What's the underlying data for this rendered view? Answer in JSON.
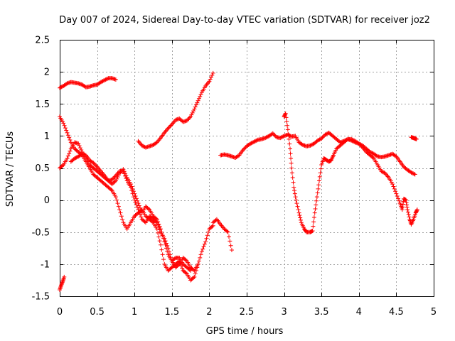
{
  "chart_data": {
    "type": "scatter",
    "title": "Day 007 of 2024, Sidereal Day-to-day VTEC variation (SDTVAR) for receiver joz2",
    "xlabel": "GPS time / hours",
    "ylabel": "SDTVAR / TECUs",
    "xlim": [
      0,
      5
    ],
    "ylim": [
      -1.5,
      2.5
    ],
    "xticks": [
      "0",
      "0.5",
      "1",
      "1.5",
      "2",
      "2.5",
      "3",
      "3.5",
      "4",
      "4.5",
      "5"
    ],
    "yticks": [
      "2.5",
      "2",
      "1.5",
      "1",
      "0.5",
      "0",
      "-0.5",
      "-1",
      "-1.5"
    ],
    "grid": true,
    "legend": "none",
    "marker": "plus",
    "color": "#ff0000",
    "series": [
      {
        "points": [
          [
            0.0,
            1.75
          ],
          [
            0.05,
            1.78
          ],
          [
            0.1,
            1.82
          ],
          [
            0.15,
            1.84
          ],
          [
            0.2,
            1.83
          ],
          [
            0.25,
            1.82
          ],
          [
            0.3,
            1.8
          ],
          [
            0.35,
            1.76
          ],
          [
            0.4,
            1.77
          ],
          [
            0.45,
            1.79
          ],
          [
            0.5,
            1.8
          ],
          [
            0.55,
            1.84
          ],
          [
            0.6,
            1.87
          ],
          [
            0.65,
            1.9
          ],
          [
            0.7,
            1.9
          ],
          [
            0.75,
            1.88
          ]
        ]
      },
      {
        "points": [
          [
            0.0,
            1.3
          ],
          [
            0.05,
            1.2
          ],
          [
            0.1,
            1.05
          ],
          [
            0.15,
            0.9
          ],
          [
            0.2,
            0.8
          ],
          [
            0.25,
            0.75
          ],
          [
            0.3,
            0.7
          ],
          [
            0.35,
            0.6
          ],
          [
            0.4,
            0.5
          ],
          [
            0.45,
            0.4
          ],
          [
            0.5,
            0.35
          ],
          [
            0.55,
            0.3
          ],
          [
            0.6,
            0.25
          ],
          [
            0.65,
            0.2
          ],
          [
            0.7,
            0.15
          ],
          [
            0.75,
            0.05
          ],
          [
            0.8,
            -0.15
          ],
          [
            0.85,
            -0.35
          ],
          [
            0.9,
            -0.45
          ],
          [
            0.95,
            -0.35
          ],
          [
            1.0,
            -0.25
          ],
          [
            1.05,
            -0.2
          ],
          [
            1.1,
            -0.15
          ],
          [
            1.15,
            -0.25
          ],
          [
            1.2,
            -0.3
          ],
          [
            1.25,
            -0.35
          ],
          [
            1.3,
            -0.45
          ],
          [
            1.35,
            -0.7
          ],
          [
            1.4,
            -1.0
          ],
          [
            1.45,
            -1.1
          ],
          [
            1.5,
            -1.05
          ],
          [
            1.55,
            -1.0
          ],
          [
            1.6,
            -0.95
          ],
          [
            1.65,
            -1.1
          ],
          [
            1.7,
            -1.15
          ],
          [
            1.75,
            -1.25
          ],
          [
            1.8,
            -1.2
          ],
          [
            1.85,
            -1.0
          ],
          [
            1.9,
            -0.8
          ],
          [
            1.95,
            -0.65
          ],
          [
            2.0,
            -0.45
          ],
          [
            2.05,
            -0.4
          ]
        ]
      },
      {
        "points": [
          [
            0.0,
            0.5
          ],
          [
            0.05,
            0.55
          ],
          [
            0.1,
            0.65
          ],
          [
            0.15,
            0.8
          ],
          [
            0.2,
            0.9
          ],
          [
            0.25,
            0.88
          ],
          [
            0.3,
            0.75
          ],
          [
            0.35,
            0.65
          ],
          [
            0.4,
            0.55
          ],
          [
            0.45,
            0.5
          ],
          [
            0.5,
            0.45
          ],
          [
            0.55,
            0.4
          ],
          [
            0.6,
            0.35
          ],
          [
            0.65,
            0.3
          ],
          [
            0.7,
            0.32
          ],
          [
            0.75,
            0.38
          ],
          [
            0.8,
            0.45
          ],
          [
            0.85,
            0.45
          ],
          [
            0.9,
            0.3
          ],
          [
            0.95,
            0.2
          ],
          [
            1.0,
            0.0
          ],
          [
            1.05,
            -0.15
          ],
          [
            1.1,
            -0.3
          ],
          [
            1.15,
            -0.35
          ],
          [
            1.2,
            -0.25
          ],
          [
            1.25,
            -0.3
          ],
          [
            1.3,
            -0.35
          ],
          [
            1.35,
            -0.5
          ],
          [
            1.4,
            -0.6
          ],
          [
            1.45,
            -0.75
          ],
          [
            1.5,
            -0.95
          ],
          [
            1.55,
            -1.05
          ],
          [
            1.6,
            -1.0
          ],
          [
            1.65,
            -0.9
          ],
          [
            1.7,
            -0.95
          ],
          [
            1.75,
            -1.05
          ],
          [
            1.8,
            -1.1
          ],
          [
            1.85,
            -1.0
          ]
        ]
      },
      {
        "points": [
          [
            0.15,
            0.6
          ],
          [
            0.2,
            0.65
          ],
          [
            0.25,
            0.68
          ],
          [
            0.3,
            0.72
          ],
          [
            0.35,
            0.7
          ],
          [
            0.4,
            0.62
          ],
          [
            0.45,
            0.58
          ],
          [
            0.5,
            0.52
          ],
          [
            0.55,
            0.45
          ],
          [
            0.6,
            0.38
          ],
          [
            0.65,
            0.3
          ],
          [
            0.7,
            0.25
          ],
          [
            0.75,
            0.3
          ],
          [
            0.8,
            0.42
          ],
          [
            0.85,
            0.48
          ],
          [
            0.9,
            0.35
          ],
          [
            0.95,
            0.25
          ],
          [
            1.0,
            0.1
          ],
          [
            1.05,
            -0.05
          ],
          [
            1.1,
            -0.2
          ],
          [
            1.15,
            -0.1
          ],
          [
            1.2,
            -0.15
          ],
          [
            1.25,
            -0.25
          ],
          [
            1.3,
            -0.3
          ],
          [
            1.35,
            -0.45
          ],
          [
            1.4,
            -0.65
          ],
          [
            1.45,
            -0.85
          ],
          [
            1.5,
            -0.95
          ],
          [
            1.55,
            -0.9
          ],
          [
            1.6,
            -0.9
          ],
          [
            1.65,
            -1.0
          ],
          [
            1.7,
            -1.05
          ],
          [
            1.75,
            -1.1
          ]
        ]
      },
      {
        "points": [
          [
            0.0,
            -1.4
          ],
          [
            0.02,
            -1.33
          ],
          [
            0.04,
            -1.27
          ],
          [
            0.06,
            -1.2
          ]
        ]
      },
      {
        "points": [
          [
            1.05,
            0.92
          ],
          [
            1.1,
            0.85
          ],
          [
            1.15,
            0.82
          ],
          [
            1.2,
            0.84
          ],
          [
            1.25,
            0.86
          ],
          [
            1.3,
            0.9
          ],
          [
            1.35,
            0.97
          ],
          [
            1.4,
            1.05
          ],
          [
            1.45,
            1.12
          ],
          [
            1.5,
            1.18
          ],
          [
            1.55,
            1.25
          ],
          [
            1.6,
            1.27
          ],
          [
            1.65,
            1.22
          ],
          [
            1.7,
            1.24
          ],
          [
            1.75,
            1.3
          ],
          [
            1.8,
            1.42
          ],
          [
            1.85,
            1.55
          ],
          [
            1.9,
            1.68
          ],
          [
            1.95,
            1.78
          ],
          [
            2.0,
            1.85
          ],
          [
            2.05,
            1.98
          ]
        ]
      },
      {
        "points": [
          [
            2.05,
            -0.35
          ],
          [
            2.1,
            -0.3
          ],
          [
            2.15,
            -0.38
          ],
          [
            2.2,
            -0.45
          ],
          [
            2.25,
            -0.5
          ],
          [
            2.3,
            -0.78
          ]
        ]
      },
      {
        "points": [
          [
            2.15,
            0.7
          ],
          [
            2.2,
            0.71
          ],
          [
            2.25,
            0.7
          ],
          [
            2.3,
            0.68
          ],
          [
            2.35,
            0.66
          ],
          [
            2.4,
            0.7
          ],
          [
            2.45,
            0.78
          ],
          [
            2.5,
            0.84
          ],
          [
            2.55,
            0.88
          ],
          [
            2.6,
            0.91
          ],
          [
            2.65,
            0.94
          ],
          [
            2.7,
            0.95
          ],
          [
            2.75,
            0.97
          ],
          [
            2.8,
            1.0
          ],
          [
            2.85,
            1.04
          ],
          [
            2.9,
            0.98
          ],
          [
            2.95,
            0.97
          ],
          [
            3.0,
            1.0
          ],
          [
            3.05,
            1.02
          ],
          [
            3.1,
            0.99
          ],
          [
            3.15,
            1.0
          ],
          [
            3.2,
            0.9
          ],
          [
            3.25,
            0.86
          ],
          [
            3.3,
            0.84
          ],
          [
            3.35,
            0.85
          ],
          [
            3.4,
            0.88
          ],
          [
            3.45,
            0.93
          ],
          [
            3.5,
            0.96
          ],
          [
            3.55,
            1.02
          ],
          [
            3.6,
            1.05
          ],
          [
            3.65,
            1.0
          ],
          [
            3.7,
            0.95
          ],
          [
            3.75,
            0.9
          ],
          [
            3.8,
            0.92
          ],
          [
            3.85,
            0.95
          ],
          [
            3.9,
            0.93
          ],
          [
            3.95,
            0.9
          ],
          [
            4.0,
            0.88
          ],
          [
            4.05,
            0.85
          ],
          [
            4.1,
            0.8
          ],
          [
            4.15,
            0.75
          ],
          [
            4.2,
            0.72
          ],
          [
            4.25,
            0.68
          ],
          [
            4.3,
            0.67
          ],
          [
            4.35,
            0.68
          ],
          [
            4.4,
            0.7
          ],
          [
            4.45,
            0.72
          ],
          [
            4.5,
            0.68
          ],
          [
            4.55,
            0.6
          ],
          [
            4.6,
            0.52
          ],
          [
            4.65,
            0.47
          ],
          [
            4.7,
            0.43
          ],
          [
            4.75,
            0.4
          ]
        ]
      },
      {
        "points": [
          [
            3.0,
            1.3
          ],
          [
            3.02,
            1.35
          ],
          [
            3.05,
            1.1
          ],
          [
            3.08,
            0.8
          ],
          [
            3.1,
            0.5
          ],
          [
            3.13,
            0.2
          ],
          [
            3.16,
            0.0
          ],
          [
            3.2,
            -0.2
          ],
          [
            3.23,
            -0.35
          ],
          [
            3.27,
            -0.45
          ],
          [
            3.3,
            -0.5
          ],
          [
            3.35,
            -0.5
          ],
          [
            3.38,
            -0.48
          ],
          [
            3.41,
            -0.2
          ],
          [
            3.44,
            0.05
          ],
          [
            3.47,
            0.3
          ],
          [
            3.5,
            0.55
          ],
          [
            3.53,
            0.65
          ],
          [
            3.56,
            0.63
          ],
          [
            3.6,
            0.6
          ],
          [
            3.63,
            0.62
          ],
          [
            3.66,
            0.7
          ],
          [
            3.7,
            0.8
          ],
          [
            3.75,
            0.85
          ],
          [
            3.8,
            0.9
          ],
          [
            3.85,
            0.95
          ],
          [
            3.9,
            0.95
          ],
          [
            3.95,
            0.92
          ],
          [
            4.0,
            0.88
          ],
          [
            4.05,
            0.82
          ],
          [
            4.1,
            0.75
          ],
          [
            4.15,
            0.7
          ],
          [
            4.2,
            0.65
          ],
          [
            4.25,
            0.55
          ],
          [
            4.3,
            0.45
          ],
          [
            4.35,
            0.42
          ],
          [
            4.4,
            0.35
          ],
          [
            4.45,
            0.25
          ],
          [
            4.5,
            0.1
          ],
          [
            4.55,
            -0.05
          ],
          [
            4.58,
            -0.15
          ],
          [
            4.6,
            0.02
          ],
          [
            4.63,
            0.0
          ],
          [
            4.65,
            -0.15
          ],
          [
            4.68,
            -0.3
          ],
          [
            4.7,
            -0.38
          ],
          [
            4.73,
            -0.3
          ],
          [
            4.76,
            -0.2
          ],
          [
            4.78,
            -0.15
          ]
        ]
      },
      {
        "points": [
          [
            4.7,
            0.98
          ],
          [
            4.73,
            0.97
          ],
          [
            4.75,
            0.96
          ],
          [
            4.77,
            0.95
          ]
        ]
      }
    ]
  }
}
